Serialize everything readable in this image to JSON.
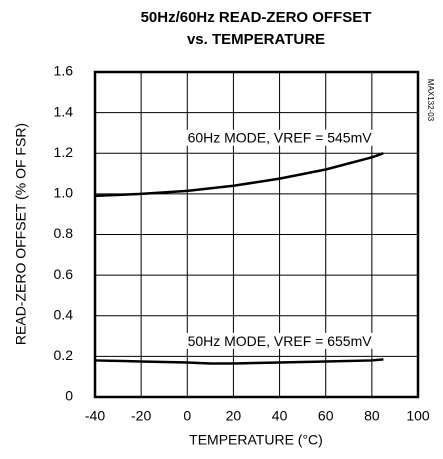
{
  "chart_data": {
    "type": "line",
    "title": "50Hz/60Hz READ-ZERO OFFSET",
    "subtitle": "vs. TEMPERATURE",
    "xlabel": "TEMPERATURE (°C)",
    "ylabel": "READ-ZERO OFFSET (% OF FSR)",
    "watermark": "MAX132-03",
    "xlim": [
      -40,
      100
    ],
    "xticks": [
      -40,
      -20,
      0,
      20,
      40,
      60,
      80,
      100
    ],
    "ylim": [
      0,
      1.6
    ],
    "yticks": [
      0,
      0.2,
      0.4,
      0.6,
      0.8,
      {
        "value": 1,
        "label": "1.0"
      },
      1.2,
      1.4,
      1.6
    ],
    "grid": true,
    "series": [
      {
        "color": "#000000",
        "x": [
          -40,
          -20,
          0,
          20,
          40,
          60,
          80,
          85
        ],
        "values": [
          0.99,
          1.0,
          1.015,
          1.04,
          1.075,
          1.12,
          1.18,
          1.2
        ]
      },
      {
        "color": "#000000",
        "x": [
          -40,
          -20,
          0,
          10,
          20,
          40,
          60,
          80,
          85
        ],
        "values": [
          0.18,
          0.175,
          0.17,
          0.165,
          0.165,
          0.17,
          0.175,
          0.18,
          0.185
        ]
      }
    ],
    "annotations": [
      {
        "text": "60Hz MODE, VREF = 545mV",
        "x": 40,
        "y": 1.27
      },
      {
        "text": "50Hz MODE, VREF = 655mV",
        "x": 40,
        "y": 0.27
      }
    ]
  }
}
